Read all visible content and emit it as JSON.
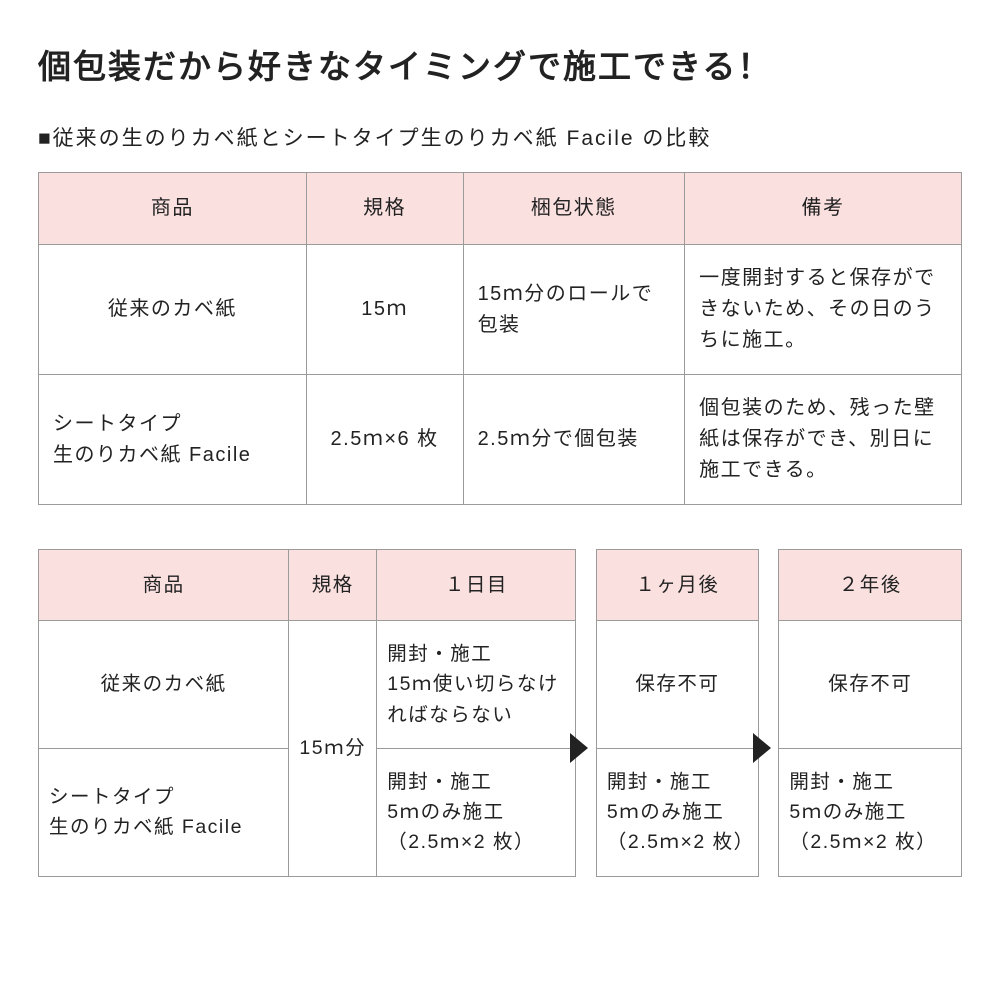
{
  "colors": {
    "header_bg": "#fbe0e0",
    "border": "#9b9b9b",
    "text": "#222222",
    "page_bg": "#ffffff",
    "arrow": "#222222"
  },
  "title": "個包装だから好きなタイミングで施工できる！",
  "subtitle": "■従来の生のりカベ紙とシートタイプ生のりカベ紙 Facile の比較",
  "table1": {
    "headers": [
      "商品",
      "規格",
      "梱包状態",
      "備考"
    ],
    "rows": [
      {
        "product": "従来のカベ紙",
        "spec": "15ｍ",
        "packaging": "15ｍ分のロールで包装",
        "remarks": "一度開封すると保存ができないため、その日のうちに施工。"
      },
      {
        "product": "シートタイプ\n生のりカベ紙 Facile",
        "spec": "2.5ｍ×6 枚",
        "packaging": "2.5ｍ分で個包装",
        "remarks": "個包装のため、残った壁紙は保存ができ、別日に施工できる。"
      }
    ]
  },
  "table2": {
    "headers": [
      "商品",
      "規格",
      "１日目",
      "１ヶ月後",
      "２年後"
    ],
    "spec_merged": "15ｍ分",
    "rows": [
      {
        "product": "従来のカベ紙",
        "day1": "開封・施工\n15ｍ使い切らなければならない",
        "month1": "保存不可",
        "year2": "保存不可"
      },
      {
        "product": "シートタイプ\n生のりカベ紙 Facile",
        "day1": "開封・施工\n5ｍのみ施工\n（2.5ｍ×2 枚）",
        "month1": "開封・施工\n5ｍのみ施工\n（2.5ｍ×2 枚）",
        "year2": "開封・施工\n5ｍのみ施工\n（2.5ｍ×2 枚）"
      }
    ]
  }
}
